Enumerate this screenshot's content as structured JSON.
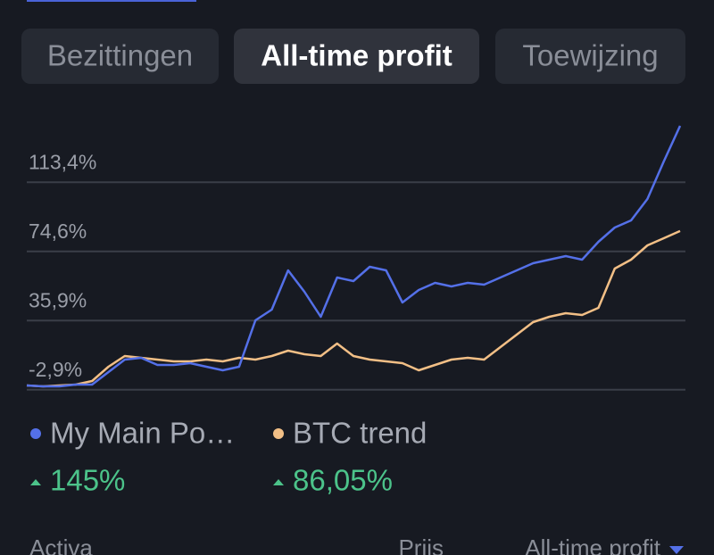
{
  "tabs": [
    "Bezittingen",
    "All-time profit",
    "Toewijzing"
  ],
  "chart_data": {
    "type": "line",
    "ylim": [
      -5,
      150
    ],
    "yticks": [
      {
        "value": -2.9,
        "label": "-2,9%"
      },
      {
        "value": 35.9,
        "label": "35,9%"
      },
      {
        "value": 74.6,
        "label": "74,6%"
      },
      {
        "value": 113.4,
        "label": "113,4%"
      }
    ],
    "grid": true,
    "series": [
      {
        "name": "My Main Po…",
        "color": "#5470e8",
        "change_label": "145%",
        "values": [
          -0.5,
          -1,
          -1,
          0,
          0,
          7,
          14,
          15,
          11,
          11,
          12,
          10,
          8,
          10,
          36,
          42,
          64,
          52,
          38,
          60,
          58,
          66,
          64,
          46,
          53,
          57,
          55,
          57,
          56,
          60,
          64,
          68,
          70,
          72,
          70,
          80,
          88,
          92,
          104,
          125,
          145
        ]
      },
      {
        "name": "BTC trend",
        "color": "#f2bf86",
        "change_label": "86,05%",
        "values": [
          -0.5,
          -1,
          -0.5,
          0,
          2,
          10,
          16,
          15,
          14,
          13,
          13,
          14,
          13,
          15,
          14,
          16,
          19,
          17,
          16,
          23,
          16,
          14,
          13,
          12,
          8,
          11,
          14,
          15,
          14,
          21,
          28,
          35,
          38,
          40,
          39,
          43,
          65,
          70,
          78,
          82,
          86.05
        ]
      }
    ]
  },
  "table_header": {
    "columns": [
      "Activa",
      "Prijs",
      "All-time profit"
    ]
  }
}
